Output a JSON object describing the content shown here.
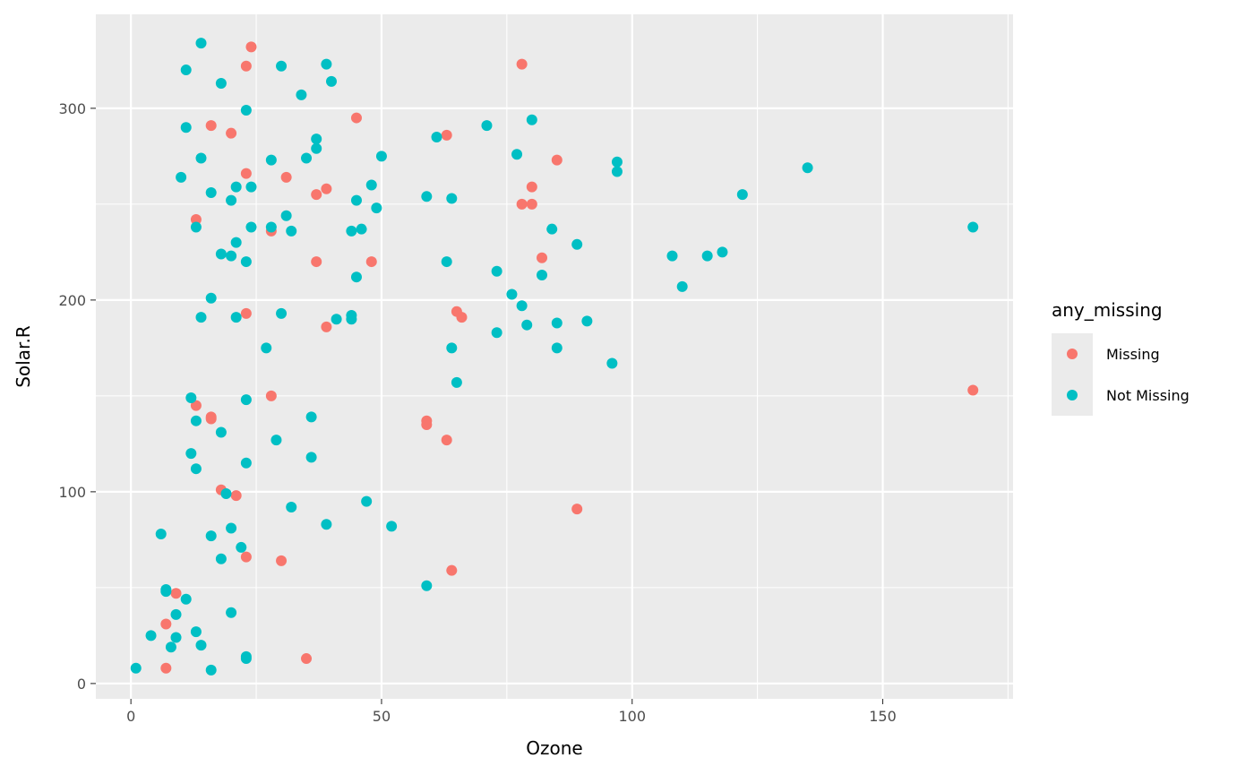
{
  "chart_data": {
    "type": "scatter",
    "xlabel": "Ozone",
    "ylabel": "Solar.R",
    "xlim": [
      -7,
      176
    ],
    "ylim": [
      -8,
      349
    ],
    "xticks": [
      0,
      50,
      100,
      150
    ],
    "yticks": [
      0,
      100,
      200,
      300
    ],
    "xtick_labels": [
      "0",
      "50",
      "100",
      "150"
    ],
    "ytick_labels": [
      "0",
      "100",
      "200",
      "300"
    ],
    "grid": true,
    "panel_background": "#ebebeb",
    "legend": {
      "title": "any_missing",
      "placement": "right",
      "entries": [
        {
          "label": "Missing",
          "color": "#f8766d"
        },
        {
          "label": "Not Missing",
          "color": "#00bfc4"
        }
      ]
    },
    "series": [
      {
        "name": "Missing",
        "color": "#f8766d",
        "points": [
          [
            24,
            332
          ],
          [
            23,
            322
          ],
          [
            78,
            323
          ],
          [
            45,
            295
          ],
          [
            16,
            291
          ],
          [
            20,
            287
          ],
          [
            63,
            286
          ],
          [
            85,
            273
          ],
          [
            23,
            266
          ],
          [
            31,
            264
          ],
          [
            39,
            258
          ],
          [
            37,
            255
          ],
          [
            80,
            259
          ],
          [
            78,
            250
          ],
          [
            80,
            250
          ],
          [
            13,
            242
          ],
          [
            28,
            236
          ],
          [
            37,
            220
          ],
          [
            48,
            220
          ],
          [
            82,
            222
          ],
          [
            23,
            193
          ],
          [
            39,
            186
          ],
          [
            65,
            194
          ],
          [
            66,
            191
          ],
          [
            168,
            153
          ],
          [
            28,
            150
          ],
          [
            13,
            145
          ],
          [
            16,
            139
          ],
          [
            16,
            138
          ],
          [
            59,
            137
          ],
          [
            59,
            135
          ],
          [
            63,
            127
          ],
          [
            18,
            101
          ],
          [
            21,
            98
          ],
          [
            89,
            91
          ],
          [
            23,
            66
          ],
          [
            30,
            64
          ],
          [
            64,
            59
          ],
          [
            9,
            47
          ],
          [
            7,
            31
          ],
          [
            35,
            13
          ],
          [
            7,
            8
          ]
        ]
      },
      {
        "name": "Not Missing",
        "color": "#00bfc4",
        "points": [
          [
            14,
            334
          ],
          [
            11,
            320
          ],
          [
            18,
            313
          ],
          [
            30,
            322
          ],
          [
            39,
            323
          ],
          [
            40,
            314
          ],
          [
            34,
            307
          ],
          [
            23,
            299
          ],
          [
            80,
            294
          ],
          [
            11,
            290
          ],
          [
            71,
            291
          ],
          [
            61,
            285
          ],
          [
            37,
            284
          ],
          [
            37,
            279
          ],
          [
            77,
            276
          ],
          [
            14,
            274
          ],
          [
            28,
            273
          ],
          [
            35,
            274
          ],
          [
            50,
            275
          ],
          [
            97,
            272
          ],
          [
            97,
            267
          ],
          [
            135,
            269
          ],
          [
            10,
            264
          ],
          [
            21,
            259
          ],
          [
            24,
            259
          ],
          [
            16,
            256
          ],
          [
            20,
            252
          ],
          [
            48,
            260
          ],
          [
            45,
            252
          ],
          [
            59,
            254
          ],
          [
            64,
            253
          ],
          [
            122,
            255
          ],
          [
            49,
            248
          ],
          [
            31,
            244
          ],
          [
            13,
            238
          ],
          [
            24,
            238
          ],
          [
            28,
            238
          ],
          [
            32,
            236
          ],
          [
            44,
            236
          ],
          [
            46,
            237
          ],
          [
            84,
            237
          ],
          [
            168,
            238
          ],
          [
            21,
            230
          ],
          [
            18,
            224
          ],
          [
            20,
            223
          ],
          [
            23,
            220
          ],
          [
            63,
            220
          ],
          [
            89,
            229
          ],
          [
            108,
            223
          ],
          [
            115,
            223
          ],
          [
            118,
            225
          ],
          [
            45,
            212
          ],
          [
            73,
            215
          ],
          [
            82,
            213
          ],
          [
            110,
            207
          ],
          [
            16,
            201
          ],
          [
            76,
            203
          ],
          [
            78,
            197
          ],
          [
            14,
            191
          ],
          [
            21,
            191
          ],
          [
            30,
            193
          ],
          [
            41,
            190
          ],
          [
            44,
            192
          ],
          [
            44,
            190
          ],
          [
            79,
            187
          ],
          [
            85,
            188
          ],
          [
            91,
            189
          ],
          [
            73,
            183
          ],
          [
            27,
            175
          ],
          [
            64,
            175
          ],
          [
            85,
            175
          ],
          [
            96,
            167
          ],
          [
            65,
            157
          ],
          [
            12,
            149
          ],
          [
            23,
            148
          ],
          [
            13,
            137
          ],
          [
            36,
            139
          ],
          [
            18,
            131
          ],
          [
            29,
            127
          ],
          [
            12,
            120
          ],
          [
            36,
            118
          ],
          [
            23,
            115
          ],
          [
            13,
            112
          ],
          [
            19,
            99
          ],
          [
            47,
            95
          ],
          [
            32,
            92
          ],
          [
            39,
            83
          ],
          [
            52,
            82
          ],
          [
            20,
            81
          ],
          [
            6,
            78
          ],
          [
            16,
            77
          ],
          [
            22,
            71
          ],
          [
            18,
            65
          ],
          [
            59,
            51
          ],
          [
            7,
            49
          ],
          [
            7,
            48
          ],
          [
            11,
            44
          ],
          [
            20,
            37
          ],
          [
            9,
            36
          ],
          [
            13,
            27
          ],
          [
            4,
            25
          ],
          [
            9,
            24
          ],
          [
            14,
            20
          ],
          [
            8,
            19
          ],
          [
            23,
            14
          ],
          [
            23,
            13
          ],
          [
            1,
            8
          ],
          [
            16,
            7
          ]
        ]
      }
    ]
  }
}
